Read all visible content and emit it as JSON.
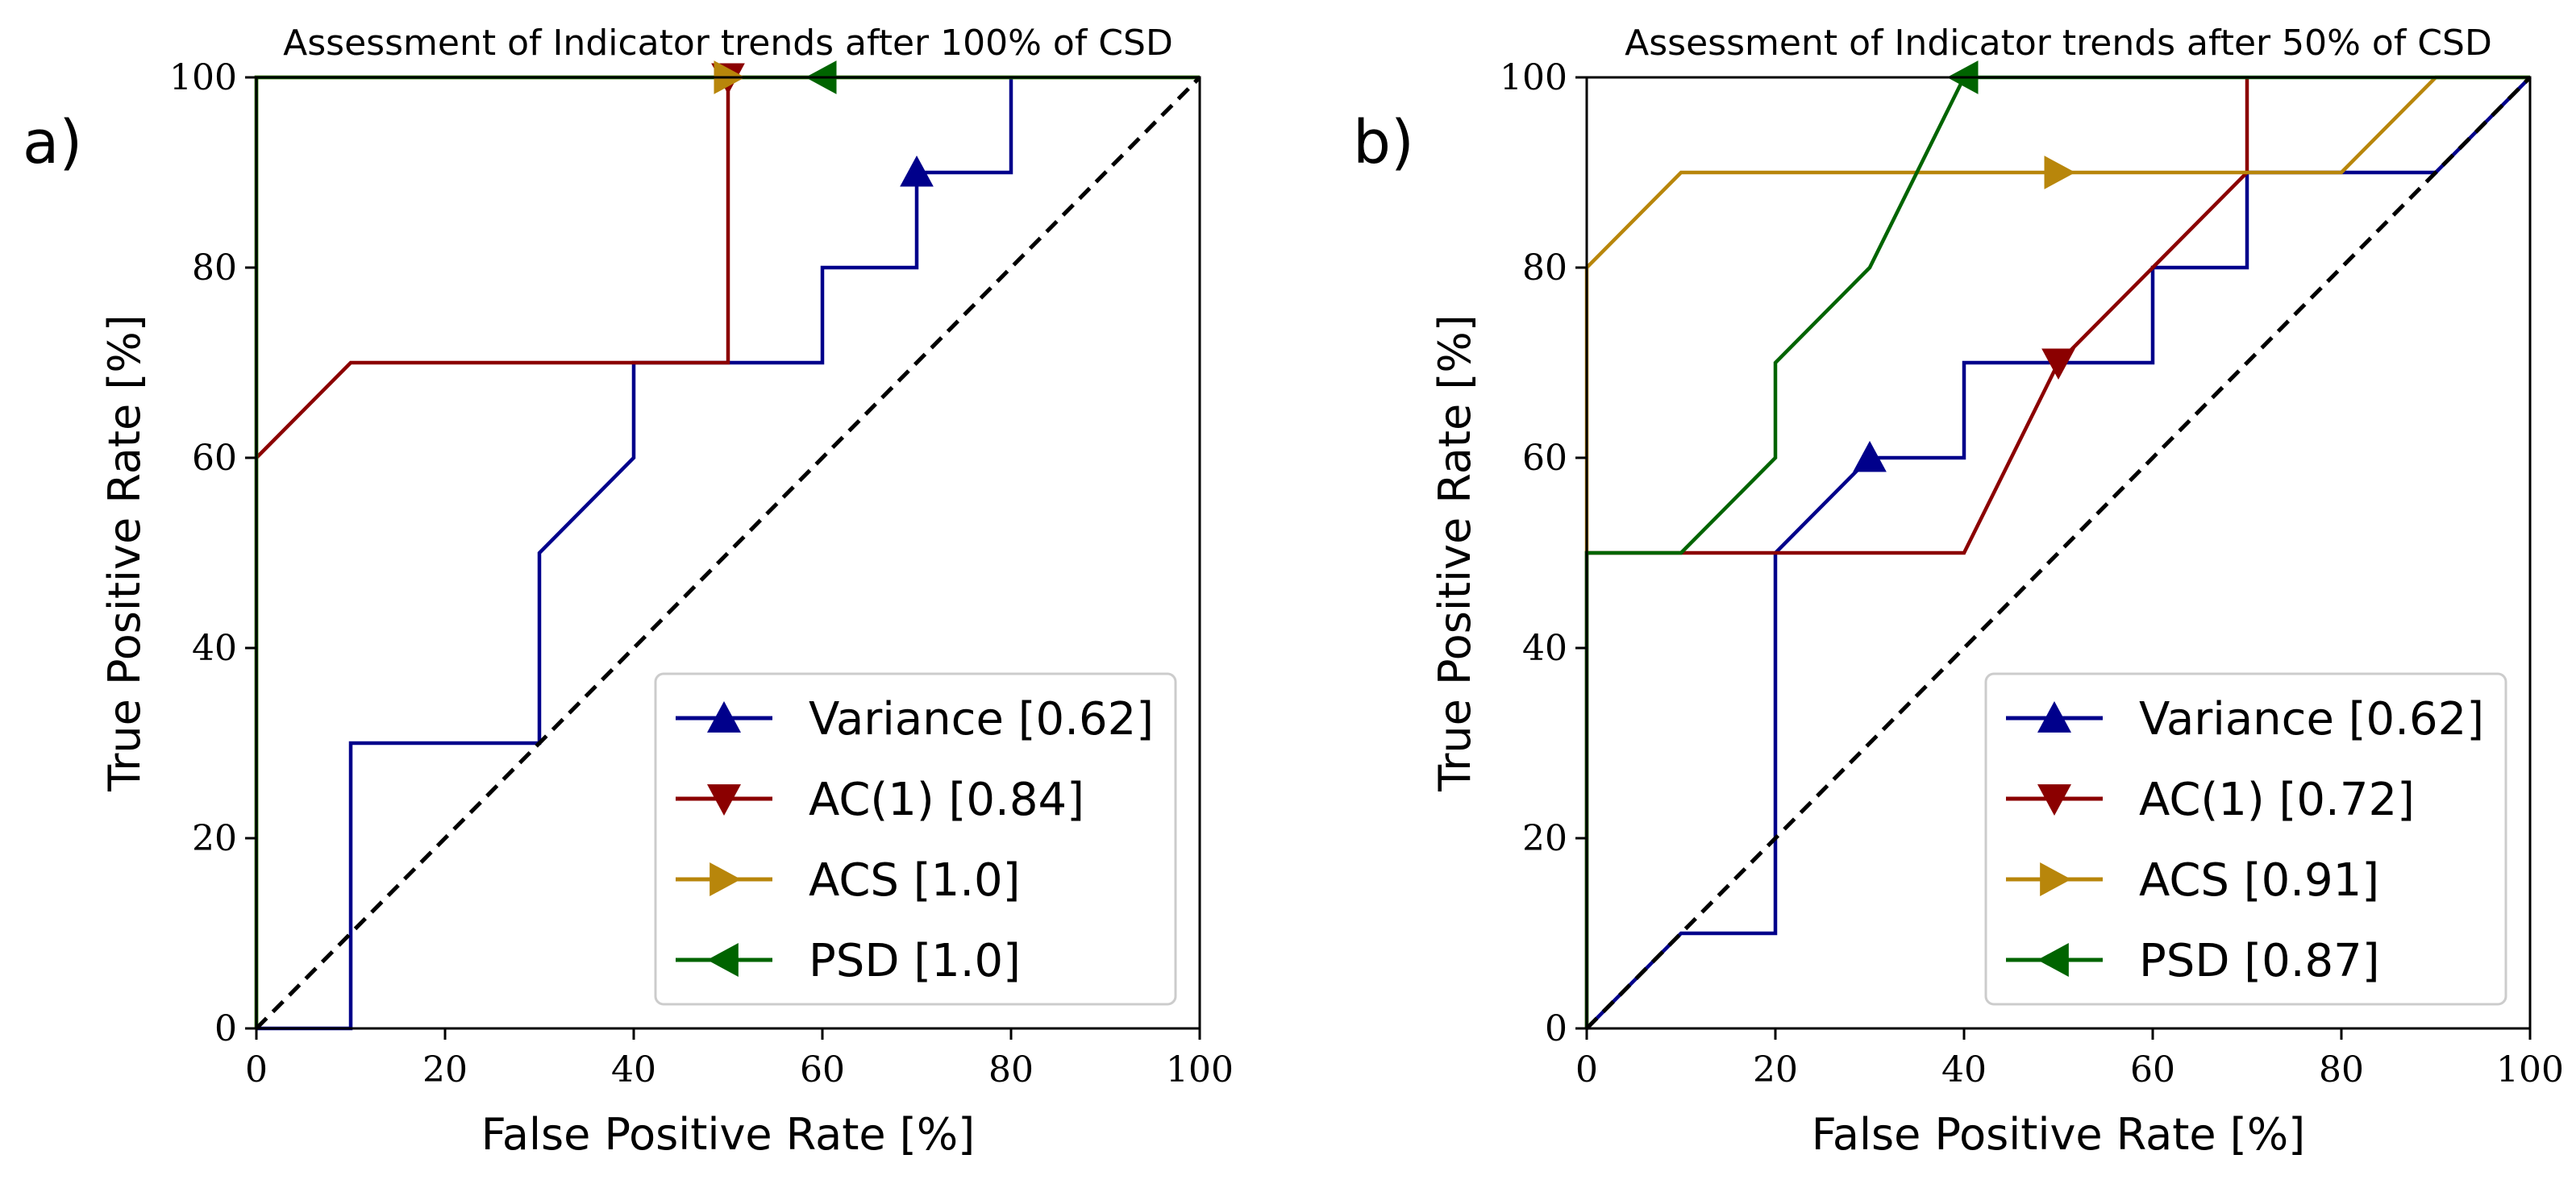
{
  "chart_data": [
    {
      "type": "line",
      "panel_label": "a)",
      "title": "Assessment of Indicator trends after 100% of CSD",
      "xlabel": "False Positive Rate [%]",
      "ylabel": "True Positive Rate [%]",
      "xlim": [
        0,
        100
      ],
      "ylim": [
        0,
        100
      ],
      "xticks": [
        0,
        20,
        40,
        60,
        80,
        100
      ],
      "yticks": [
        0,
        20,
        40,
        60,
        80,
        100
      ],
      "grid": false,
      "legend_position": "lower-right",
      "series": [
        {
          "name": "Variance [0.62]",
          "color": "#00008b",
          "marker": "triangle-up",
          "marker_at": [
            70,
            90
          ],
          "x": [
            0,
            10,
            10,
            30,
            30,
            40,
            40,
            60,
            60,
            70,
            70,
            80,
            80
          ],
          "y": [
            0,
            0,
            30,
            30,
            50,
            60,
            70,
            70,
            80,
            80,
            90,
            90,
            100
          ]
        },
        {
          "name": "AC(1) [0.84]",
          "color": "#8b0000",
          "marker": "triangle-down",
          "marker_at": [
            50,
            100
          ],
          "x": [
            0,
            10,
            50,
            50
          ],
          "y": [
            60,
            70,
            70,
            100
          ]
        },
        {
          "name": "ACS [1.0]",
          "color": "#b8860b",
          "marker": "triangle-right",
          "marker_at": [
            50,
            100
          ],
          "x": [
            0,
            0,
            100
          ],
          "y": [
            0,
            100,
            100
          ]
        },
        {
          "name": "PSD [1.0]",
          "color": "#006400",
          "marker": "triangle-left",
          "marker_at": [
            60,
            100
          ],
          "x": [
            0,
            0,
            100
          ],
          "y": [
            0,
            100,
            100
          ]
        },
        {
          "name": "",
          "color": "#000000",
          "style": "dashed",
          "x": [
            0,
            100
          ],
          "y": [
            0,
            100
          ]
        }
      ]
    },
    {
      "type": "line",
      "panel_label": "b)",
      "title": "Assessment of Indicator trends after 50% of CSD",
      "xlabel": "False Positive Rate [%]",
      "ylabel": "True Positive Rate [%]",
      "xlim": [
        0,
        100
      ],
      "ylim": [
        0,
        100
      ],
      "xticks": [
        0,
        20,
        40,
        60,
        80,
        100
      ],
      "yticks": [
        0,
        20,
        40,
        60,
        80,
        100
      ],
      "grid": false,
      "legend_position": "lower-right",
      "series": [
        {
          "name": "Variance [0.62]",
          "color": "#00008b",
          "marker": "triangle-up",
          "marker_at": [
            30,
            60
          ],
          "x": [
            0,
            10,
            20,
            20,
            30,
            40,
            40,
            60,
            60,
            70,
            70,
            80,
            90,
            100
          ],
          "y": [
            0,
            10,
            10,
            50,
            60,
            60,
            70,
            70,
            80,
            80,
            90,
            90,
            90,
            100
          ]
        },
        {
          "name": "AC(1) [0.72]",
          "color": "#8b0000",
          "marker": "triangle-down",
          "marker_at": [
            50,
            70
          ],
          "x": [
            0,
            0,
            20,
            40,
            50,
            60,
            70,
            70
          ],
          "y": [
            0,
            50,
            50,
            50,
            70,
            80,
            90,
            100
          ]
        },
        {
          "name": "ACS [0.91]",
          "color": "#b8860b",
          "marker": "triangle-right",
          "marker_at": [
            50,
            90
          ],
          "x": [
            0,
            0,
            10,
            80,
            90,
            100
          ],
          "y": [
            50,
            80,
            90,
            90,
            100,
            100
          ]
        },
        {
          "name": "PSD [0.87]",
          "color": "#006400",
          "marker": "triangle-left",
          "marker_at": [
            40,
            100
          ],
          "x": [
            0,
            0,
            10,
            20,
            20,
            30,
            40,
            100
          ],
          "y": [
            0,
            50,
            50,
            60,
            70,
            80,
            100,
            100
          ]
        },
        {
          "name": "",
          "color": "#000000",
          "style": "dashed",
          "x": [
            0,
            100
          ],
          "y": [
            0,
            100
          ]
        }
      ]
    }
  ]
}
